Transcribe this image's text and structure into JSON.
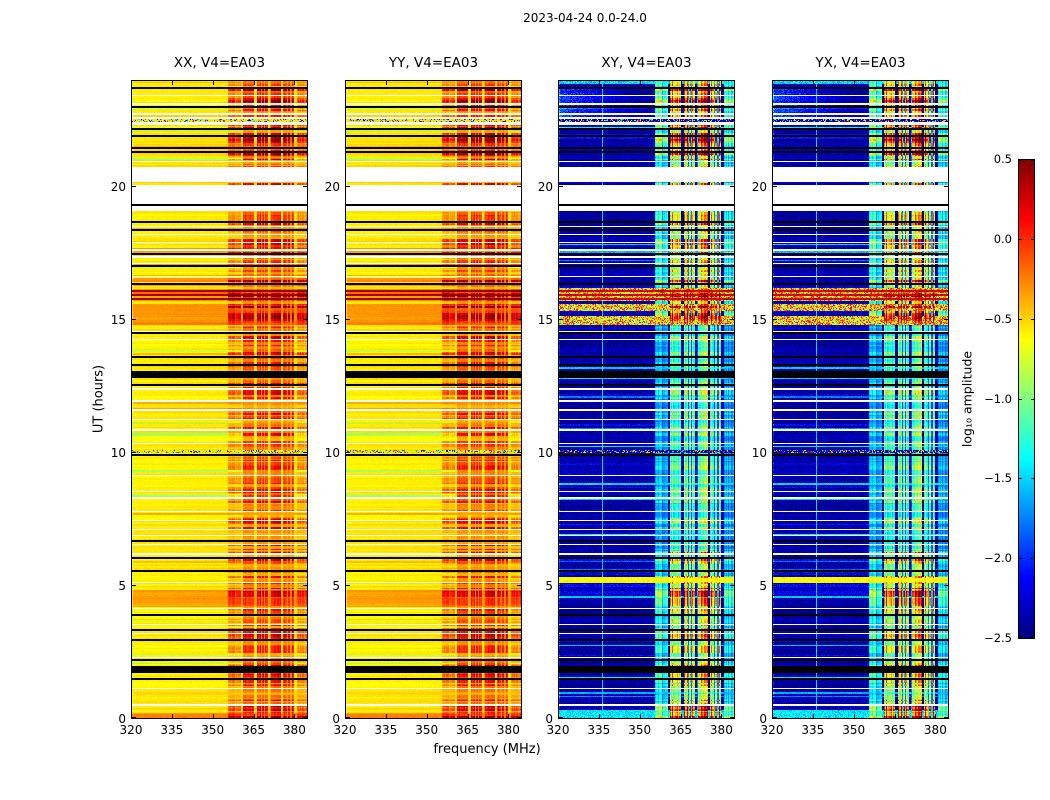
{
  "figure": {
    "title": "2023-04-24 0.0-24.0"
  },
  "chart_data": {
    "type": "heatmap",
    "title": "2023-04-24 0.0-24.0",
    "xlabel": "frequency (MHz)",
    "ylabel": "UT (hours)",
    "x_range": [
      320,
      385
    ],
    "y_range": [
      0,
      24
    ],
    "x_tick_values": [
      320,
      335,
      350,
      365,
      380
    ],
    "x_tick_labels": [
      "320",
      "335",
      "350",
      "365",
      "380"
    ],
    "y_tick_values": [
      0,
      5,
      10,
      15,
      20
    ],
    "y_tick_labels": [
      "0",
      "5",
      "10",
      "15",
      "20"
    ],
    "panels": [
      {
        "id": "xx",
        "label": "XX, V4=EA03",
        "kind": "parallel"
      },
      {
        "id": "yy",
        "label": "YY, V4=EA03",
        "kind": "parallel"
      },
      {
        "id": "xy",
        "label": "XY, V4=EA03",
        "kind": "cross"
      },
      {
        "id": "yx",
        "label": "YX, V4=EA03",
        "kind": "cross"
      }
    ],
    "colorbar": {
      "label": "log₁₀ amplitude",
      "colormap": "jet",
      "range": [
        -2.5,
        0.5
      ],
      "tick_values": [
        0.5,
        0.0,
        -0.5,
        -1.0,
        -1.5,
        -2.0,
        -2.5
      ],
      "tick_labels": [
        "0.5",
        "0.0",
        "−0.5",
        "−1.0",
        "−1.5",
        "−2.0",
        "−2.5"
      ]
    },
    "features": {
      "seed": 20230424,
      "base_parallel": -0.58,
      "base_cross": -2.4,
      "rfi_strong_mhz": [
        [
          361.3,
          365.3
        ],
        [
          366.1,
          370.3
        ],
        [
          371.1,
          375.1
        ],
        [
          375.9,
          380.0
        ]
      ],
      "rfi_weak_mhz": [
        [
          355.5,
          360.3
        ],
        [
          380.8,
          384.6
        ]
      ],
      "cyan_line_mhz": 336.3,
      "white_gaps_ut": [
        [
          19.07,
          20.05
        ],
        [
          20.16,
          20.72
        ],
        [
          22.3,
          22.42
        ],
        [
          22.52,
          22.62
        ]
      ],
      "thin_white_ut": [
        0.52,
        1.15,
        2.32,
        3.2,
        3.55,
        4.15,
        5.12,
        6.2,
        6.55,
        6.9,
        7.12,
        7.45,
        7.8,
        8.3,
        8.55,
        9.15,
        10.35,
        10.85,
        11.25,
        11.6,
        11.95,
        12.4,
        14.25,
        14.55,
        16.62,
        17.1,
        17.35,
        17.62,
        17.9,
        18.2,
        18.5,
        20.95,
        22.72,
        23.1,
        23.42
      ],
      "black_lines_ut": [
        1.5,
        2.2,
        2.95,
        3.35,
        3.9,
        5.55,
        6.05,
        6.7,
        9.9,
        12.55,
        13.3,
        13.6,
        14.5,
        16.35,
        17.0,
        17.48,
        18.35,
        18.65,
        19.3,
        21.3,
        21.45,
        21.9,
        22.15,
        23.0,
        23.7
      ],
      "black_bands_ut": [
        [
          12.8,
          13.08
        ],
        [
          1.73,
          2.0
        ]
      ],
      "rfi_hot_ut": [
        [
          14.8,
          15.6
        ],
        [
          15.7,
          16.15
        ],
        [
          21.2,
          21.95
        ],
        [
          22.85,
          23.75
        ],
        [
          4.25,
          4.85
        ],
        [
          16.3,
          16.55
        ],
        [
          0.0,
          0.5
        ]
      ],
      "warm_bands_parallel_ut": [
        [
          14.8,
          15.6
        ],
        [
          15.7,
          16.15
        ],
        [
          16.3,
          16.55
        ],
        [
          4.25,
          4.85
        ]
      ],
      "colorful_bands_cross_ut": [
        [
          14.8,
          15.12
        ],
        [
          15.32,
          15.58
        ],
        [
          15.7,
          16.18
        ]
      ],
      "red_rows_ut": [
        15.78,
        15.92,
        16.06
      ],
      "speckle_rows_ut": [
        [
          10.0,
          10.12
        ],
        [
          22.42,
          22.52
        ]
      ],
      "yellow_row_cross_ut": [
        5.12,
        5.32
      ],
      "cross_bottom_cyan_ut": [
        0.05,
        0.35
      ],
      "parallel_bottom_ut": [
        0.0,
        0.18
      ],
      "blue_patch": {
        "ut": [
          22.55,
          23.75
        ],
        "mhz": [
          320,
          350
        ]
      },
      "cross_env_ut": [
        [
          0,
          0.6,
          1.0
        ],
        [
          0.6,
          4.2,
          0.82
        ],
        [
          4.2,
          5.0,
          1.0
        ],
        [
          5.0,
          6.3,
          0.85
        ],
        [
          6.3,
          13.0,
          0.62
        ],
        [
          13.0,
          14.8,
          0.58
        ],
        [
          14.8,
          16.2,
          1.05
        ],
        [
          16.2,
          19.07,
          0.9
        ],
        [
          19.07,
          21.2,
          0.85
        ],
        [
          21.2,
          24.01,
          1.02
        ]
      ],
      "parallel_env_ut": [
        [
          0,
          14.8,
          0.92
        ],
        [
          14.8,
          16.2,
          1.18
        ],
        [
          16.2,
          21.2,
          0.95
        ],
        [
          21.2,
          24.01,
          1.08
        ]
      ]
    }
  }
}
